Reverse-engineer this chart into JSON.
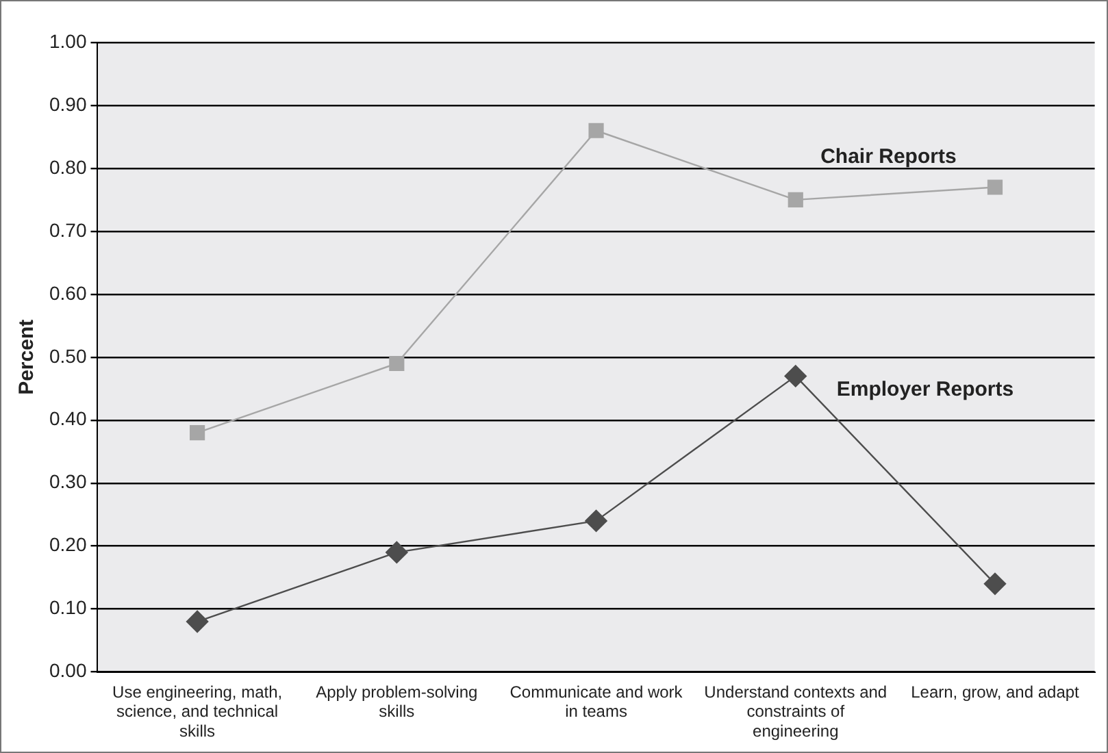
{
  "chart_data": {
    "type": "line",
    "ylabel": "Percent",
    "categories": [
      "Use engineering, math, science, and technical skills",
      "Apply problem-solving skills",
      "Communicate and work in teams",
      "Understand contexts and constraints of engineering",
      "Learn, grow, and adapt"
    ],
    "series": [
      {
        "name": "Chair Reports",
        "color": "#a6a6a6",
        "marker": "square",
        "values": [
          0.38,
          0.49,
          0.86,
          0.75,
          0.77
        ]
      },
      {
        "name": "Employer Reports",
        "color": "#4d4d4d",
        "marker": "diamond",
        "values": [
          0.08,
          0.19,
          0.24,
          0.47,
          0.14
        ]
      }
    ],
    "ylim": [
      0,
      1
    ],
    "yticks": [
      {
        "value": 0,
        "label": "0.00"
      },
      {
        "value": 0.1,
        "label": "0.10"
      },
      {
        "value": 0.2,
        "label": "0.20"
      },
      {
        "value": 0.3,
        "label": "0.30"
      },
      {
        "value": 0.4,
        "label": "0.40"
      },
      {
        "value": 0.5,
        "label": "0.50"
      },
      {
        "value": 0.6,
        "label": "0.60"
      },
      {
        "value": 0.7,
        "label": "0.70"
      },
      {
        "value": 0.8,
        "label": "0.80"
      },
      {
        "value": 0.9,
        "label": "0.90"
      },
      {
        "value": 1,
        "label": "1.00"
      }
    ],
    "grid": "y",
    "legend": false
  }
}
